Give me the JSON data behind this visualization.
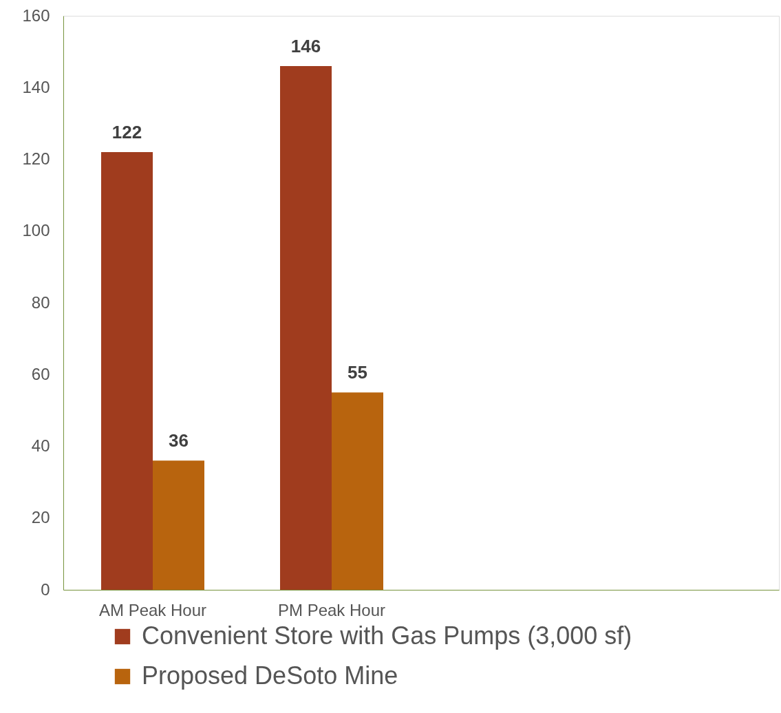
{
  "chart_data": {
    "type": "bar",
    "categories": [
      "AM Peak Hour",
      "PM Peak Hour",
      null,
      null
    ],
    "series": [
      {
        "name": "Convenient Store with Gas Pumps (3,000 sf)",
        "color": "#a03c1e",
        "values": [
          122,
          146,
          null,
          null
        ]
      },
      {
        "name": "Proposed DeSoto Mine",
        "color": "#b8640e",
        "values": [
          36,
          55,
          null,
          null
        ]
      }
    ],
    "ylim": [
      0,
      160
    ],
    "yticks": [
      0,
      20,
      40,
      60,
      80,
      100,
      120,
      140,
      160
    ],
    "grid": false,
    "legend": "bottom",
    "data_labels": true
  }
}
